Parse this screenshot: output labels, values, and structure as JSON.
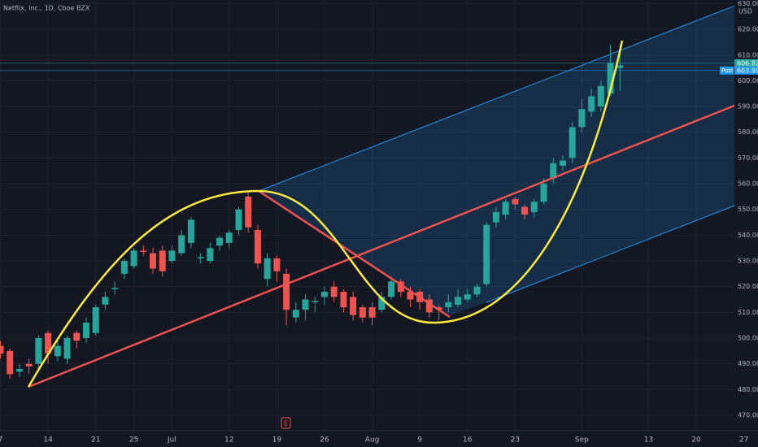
{
  "chart_data": {
    "type": "candlestick",
    "title": "Netflix, Inc., 1D, Cboe BZX",
    "currency": "USD",
    "categories": [
      "7",
      null,
      null,
      null,
      null,
      "14",
      null,
      null,
      null,
      null,
      "21",
      null,
      null,
      null,
      "25",
      null,
      null,
      null,
      "Jul",
      null,
      null,
      null,
      null,
      null,
      "12",
      null,
      null,
      null,
      null,
      "19",
      null,
      null,
      null,
      null,
      "26",
      null,
      null,
      null,
      null,
      "Aug",
      null,
      null,
      null,
      null,
      "9",
      null,
      null,
      null,
      null,
      "16",
      null,
      null,
      null,
      null,
      "23",
      null,
      null,
      null,
      null,
      null,
      null,
      "Sep",
      null,
      null,
      null,
      null,
      null,
      null,
      "13",
      null,
      null,
      null,
      null,
      "20",
      null,
      null,
      null,
      null,
      "27"
    ],
    "open": [
      497,
      495,
      487,
      490,
      490,
      502,
      493,
      492,
      502,
      500,
      502,
      513,
      519,
      525,
      528,
      534,
      533,
      534,
      530,
      533,
      537,
      531,
      530,
      536,
      537,
      542,
      555,
      542,
      523,
      531,
      525,
      508,
      511,
      514,
      516,
      520,
      518,
      516,
      512,
      512,
      511,
      516,
      522,
      518,
      518,
      515,
      512,
      512,
      513,
      515,
      517,
      521,
      545,
      548,
      554,
      551,
      549,
      553,
      562,
      567,
      570,
      582,
      588,
      590,
      595,
      605,
      null,
      null,
      null,
      null,
      null,
      null,
      null,
      null,
      null,
      null,
      null,
      null,
      null
    ],
    "high": [
      499,
      496,
      490,
      492,
      501,
      503,
      499,
      501,
      503,
      508,
      513,
      518,
      522,
      531,
      535,
      536,
      535,
      536,
      536,
      542,
      547,
      533,
      537,
      540,
      542,
      551,
      557,
      544,
      533,
      532,
      527,
      514,
      517,
      516,
      520,
      522,
      519,
      518,
      513,
      514,
      518,
      524,
      523,
      520,
      519,
      517,
      513,
      517,
      519,
      519,
      521,
      545,
      551,
      554,
      555,
      552,
      554,
      562,
      570,
      571,
      584,
      593,
      597,
      600,
      614,
      614,
      null,
      null,
      null,
      null,
      null,
      null,
      null,
      null,
      null,
      null,
      null,
      null,
      null
    ],
    "low": [
      492,
      484,
      485,
      486,
      488,
      490,
      491,
      490,
      496,
      498,
      501,
      511,
      517,
      523,
      527,
      532,
      525,
      524,
      529,
      532,
      535,
      529,
      529,
      534,
      535,
      540,
      541,
      527,
      520,
      522,
      505,
      506,
      507,
      510,
      513,
      514,
      510,
      507,
      506,
      505,
      510,
      515,
      516,
      512,
      511,
      508,
      507,
      510,
      512,
      514,
      516,
      520,
      543,
      546,
      550,
      546,
      547,
      552,
      560,
      565,
      568,
      580,
      586,
      588,
      594,
      596,
      null,
      null,
      null,
      null,
      null,
      null,
      null,
      null,
      null,
      null,
      null,
      null,
      null
    ],
    "close": [
      494,
      486,
      488,
      489,
      500,
      494,
      497,
      500,
      499,
      506,
      512,
      516,
      519.5,
      530,
      534,
      533.5,
      527,
      526,
      534,
      540,
      546,
      531.5,
      535,
      539,
      541,
      550,
      543,
      529,
      531,
      526,
      511,
      511,
      515,
      514.5,
      518,
      516,
      512,
      509,
      508,
      508,
      516,
      522,
      518,
      515,
      514,
      510,
      511,
      514,
      516,
      517,
      520,
      544,
      549,
      553,
      552,
      548,
      553,
      560,
      568,
      569,
      582,
      589,
      594,
      598,
      607,
      606,
      null,
      null,
      null,
      null,
      null,
      null,
      null,
      null,
      null,
      null,
      null,
      null,
      null
    ],
    "up_color": "#26a69a",
    "down_color": "#ef5350",
    "ylim": [
      464,
      631.4
    ],
    "yticks": [
      {
        "value": 470,
        "label": "470.00"
      },
      {
        "value": 480,
        "label": "480.00"
      },
      {
        "value": 490,
        "label": "490.00"
      },
      {
        "value": 500,
        "label": "500.00"
      },
      {
        "value": 510,
        "label": "510.00"
      },
      {
        "value": 520,
        "label": "520.00"
      },
      {
        "value": 530,
        "label": "530.00"
      },
      {
        "value": 540,
        "label": "540.00"
      },
      {
        "value": 550,
        "label": "550.00"
      },
      {
        "value": 560,
        "label": "560.00"
      },
      {
        "value": 570,
        "label": "570.00"
      },
      {
        "value": 580,
        "label": "580.00"
      },
      {
        "value": 590,
        "label": "590.00"
      },
      {
        "value": 600,
        "label": "600.00"
      },
      {
        "value": 610,
        "label": "610.00"
      },
      {
        "value": 620,
        "label": "620.00"
      },
      {
        "value": 630,
        "label": "630.00"
      }
    ],
    "grid": true,
    "price_lines": [
      {
        "value": 606.82,
        "color": "#26a69a"
      },
      {
        "value": 603.99,
        "color": "#2196f3",
        "tag": "Post"
      }
    ],
    "earnings_marker": "E"
  }
}
